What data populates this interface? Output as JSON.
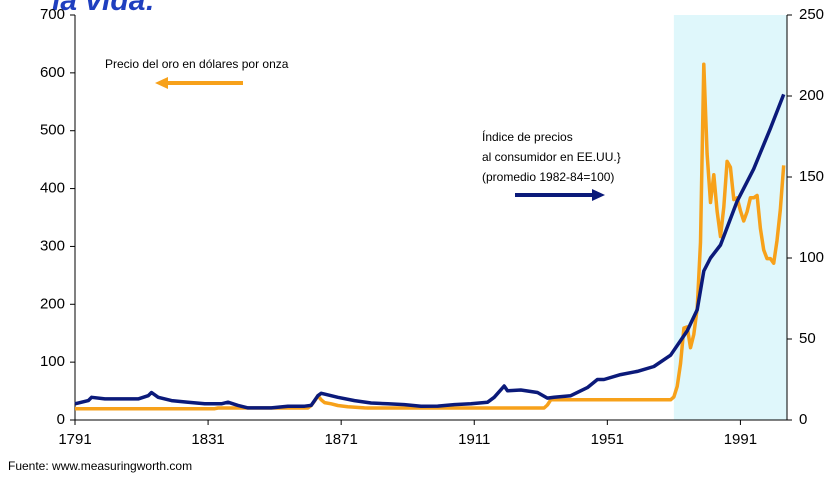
{
  "chart_data": {
    "type": "line",
    "title": "la vida:",
    "source": "Fuente: www.measuringworth.com",
    "xlim": [
      1791,
      2005
    ],
    "xticks": [
      1791,
      1831,
      1871,
      1911,
      1951,
      1991
    ],
    "ylim": [
      0,
      700
    ],
    "yticks": [
      0,
      100,
      200,
      300,
      400,
      500,
      600,
      700
    ],
    "y2lim": [
      0,
      250
    ],
    "y2ticks": [
      0,
      50,
      100,
      150,
      200,
      250
    ],
    "grid": false,
    "shade": {
      "x": [
        1971,
        2005
      ],
      "color": "#dff7fb"
    },
    "annotations": [
      {
        "lines": [
          "Precio del oro en dólares por onza"
        ]
      },
      {
        "lines": [
          "Índice de precios",
          "al consumidor en EE.UU.}",
          "(promedio 1982-84=100)"
        ]
      }
    ],
    "series": [
      {
        "name": "Precio del oro en dólares por onza",
        "color": "#f7a11a",
        "axis": "y",
        "x": [
          1791,
          1833,
          1834,
          1861,
          1862,
          1863,
          1864,
          1865,
          1866,
          1868,
          1870,
          1873,
          1878,
          1879,
          1932,
          1933,
          1934,
          1970,
          1971,
          1972,
          1973,
          1974,
          1975,
          1976,
          1977,
          1978,
          1979,
          1980,
          1981,
          1982,
          1983,
          1984,
          1985,
          1986,
          1987,
          1988,
          1989,
          1990,
          1991,
          1992,
          1993,
          1994,
          1995,
          1996,
          1997,
          1998,
          1999,
          2000,
          2001,
          2002,
          2003,
          2004
        ],
        "values": [
          19.5,
          19.5,
          20.7,
          20.7,
          25,
          33,
          42,
          35,
          30,
          28,
          25,
          23,
          21,
          20.7,
          20.7,
          26,
          35,
          35,
          40,
          58,
          97,
          159,
          161,
          125,
          148,
          193,
          307,
          615,
          460,
          376,
          424,
          361,
          317,
          368,
          447,
          437,
          381,
          384,
          362,
          344,
          360,
          384,
          384,
          388,
          331,
          294,
          279,
          279,
          271,
          310,
          363,
          440
        ]
      },
      {
        "name": "Índice de precios al consumidor en EE.UU.",
        "color": "#0b1a7a",
        "axis": "y2",
        "x": [
          1791,
          1795,
          1796,
          1800,
          1805,
          1810,
          1813,
          1814,
          1816,
          1820,
          1825,
          1830,
          1835,
          1837,
          1840,
          1843,
          1850,
          1855,
          1860,
          1862,
          1864,
          1865,
          1866,
          1870,
          1875,
          1880,
          1885,
          1890,
          1895,
          1900,
          1905,
          1910,
          1915,
          1917,
          1920,
          1921,
          1925,
          1930,
          1933,
          1935,
          1940,
          1945,
          1948,
          1950,
          1955,
          1960,
          1965,
          1970,
          1975,
          1978,
          1980,
          1982,
          1985,
          1990,
          1995,
          2000,
          2004
        ],
        "values": [
          10,
          12,
          14,
          13,
          13,
          13,
          15,
          17,
          14,
          12,
          11,
          10,
          10,
          11,
          9,
          7.5,
          7.5,
          8.5,
          8.5,
          9,
          15,
          16.5,
          16,
          14,
          12,
          10.5,
          10,
          9.5,
          8.5,
          8.6,
          9.5,
          10,
          11,
          14,
          21,
          18,
          18.5,
          17,
          13.5,
          14,
          15,
          20,
          25,
          25,
          28,
          30,
          33,
          40,
          55,
          68,
          92,
          100,
          108,
          135,
          155,
          180,
          201
        ]
      }
    ]
  }
}
